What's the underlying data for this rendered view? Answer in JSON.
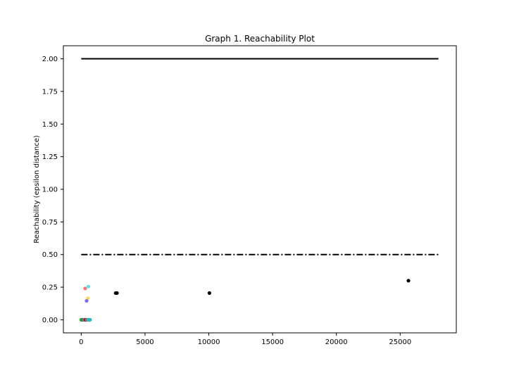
{
  "chart_data": {
    "type": "scatter",
    "title": "Graph 1. Reachability Plot",
    "xlabel": "",
    "ylabel": "Reachability (epsilon distance)",
    "xlim": [
      -1400,
      29400
    ],
    "ylim": [
      -0.1,
      2.1
    ],
    "xticks": [
      0,
      5000,
      10000,
      15000,
      20000,
      25000
    ],
    "xtick_labels": [
      "0",
      "5000",
      "10000",
      "15000",
      "20000",
      "25000"
    ],
    "yticks": [
      0.0,
      0.25,
      0.5,
      0.75,
      1.0,
      1.25,
      1.5,
      1.75,
      2.0
    ],
    "ytick_labels": [
      "0.00",
      "0.25",
      "0.50",
      "0.75",
      "1.00",
      "1.25",
      "1.50",
      "1.75",
      "2.00"
    ],
    "grid": false,
    "reference_lines": [
      {
        "y": 2.0,
        "x_range": [
          0,
          28000
        ],
        "style": "solid",
        "color": "#000000"
      },
      {
        "y": 0.5,
        "x_range": [
          0,
          28000
        ],
        "style": "dashdot",
        "color": "#000000"
      }
    ],
    "points": [
      {
        "x": 0,
        "y": 0.0,
        "color": "#2ca02c"
      },
      {
        "x": 40,
        "y": 0.0,
        "color": "#2ca02c"
      },
      {
        "x": 80,
        "y": 0.0,
        "color": "#2ca02c"
      },
      {
        "x": 120,
        "y": 0.0,
        "color": "#2ca02c"
      },
      {
        "x": 150,
        "y": 0.0,
        "color": "#1f77b4"
      },
      {
        "x": 190,
        "y": 0.0,
        "color": "#2ca02c"
      },
      {
        "x": 230,
        "y": 0.0,
        "color": "#7f7f7f"
      },
      {
        "x": 270,
        "y": 0.0,
        "color": "#9467bd"
      },
      {
        "x": 310,
        "y": 0.0,
        "color": "#d62728"
      },
      {
        "x": 350,
        "y": 0.0,
        "color": "#8c564b"
      },
      {
        "x": 380,
        "y": 0.0,
        "color": "#000000"
      },
      {
        "x": 420,
        "y": 0.0,
        "color": "#9467bd"
      },
      {
        "x": 460,
        "y": 0.0,
        "color": "#ff7f0e"
      },
      {
        "x": 500,
        "y": 0.0,
        "color": "#d62728"
      },
      {
        "x": 540,
        "y": 0.0,
        "color": "#e377c2"
      },
      {
        "x": 570,
        "y": 0.0,
        "color": "#17becf"
      },
      {
        "x": 600,
        "y": 0.0,
        "color": "#17becf"
      },
      {
        "x": 630,
        "y": 0.0,
        "color": "#17becf"
      },
      {
        "x": 660,
        "y": 0.0,
        "color": "#17becf"
      },
      {
        "x": 690,
        "y": 0.0,
        "color": "#17becf"
      },
      {
        "x": 310,
        "y": 0.24,
        "color": "#ff7070"
      },
      {
        "x": 560,
        "y": 0.255,
        "color": "#5ce1e6"
      },
      {
        "x": 520,
        "y": 0.165,
        "color": "#ffd84d"
      },
      {
        "x": 420,
        "y": 0.145,
        "color": "#7f6bff"
      },
      {
        "x": 2700,
        "y": 0.205,
        "color": "#000000"
      },
      {
        "x": 2800,
        "y": 0.205,
        "color": "#000000"
      },
      {
        "x": 10050,
        "y": 0.205,
        "color": "#000000"
      },
      {
        "x": 25650,
        "y": 0.3,
        "color": "#000000"
      }
    ]
  }
}
